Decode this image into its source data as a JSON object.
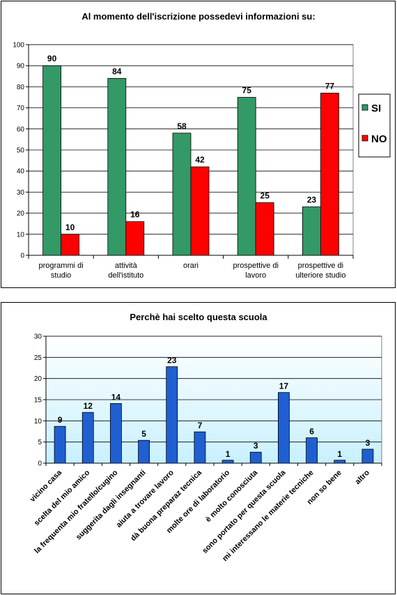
{
  "colors": {
    "si": "#339966",
    "no": "#ff0000",
    "bar2": "#1f5fd1",
    "plot1_bg": "#ffffff",
    "plot2_top": "#ffffff",
    "plot2_bottom": "#c8f0ff"
  },
  "chart_data": [
    {
      "type": "bar",
      "title": "Al momento dell'iscrizione possedevi  informazioni su:",
      "categories": [
        [
          "programmi di",
          "studio"
        ],
        [
          "attività",
          "dell'istituto"
        ],
        [
          "orari"
        ],
        [
          "prospettive di",
          "lavoro"
        ],
        [
          "prospettive  di",
          "ulteriore studio"
        ]
      ],
      "series": [
        {
          "name": "SI",
          "values": [
            90,
            84,
            58,
            75,
            23
          ]
        },
        {
          "name": "NO",
          "values": [
            10,
            16,
            42,
            25,
            77
          ]
        }
      ],
      "ylim": [
        0,
        100
      ],
      "yticks": [
        0,
        10,
        20,
        30,
        40,
        50,
        60,
        70,
        80,
        90,
        100
      ],
      "grid": true,
      "legend": "right"
    },
    {
      "type": "bar",
      "title": "Perchè hai scelto questa scuola",
      "categories": [
        "vicino casa",
        "scelta del mio amico",
        "la frequenta mio fratello/cugino",
        "suggerita dagli insegnanti",
        "aiuta a trovare lavoro",
        "dà buona preparaz tecnica",
        "molte ore di laboratorio",
        "è molto conosciuta",
        "sono portato per questa scuola",
        "mi interessano le materie tecniche",
        "non so bene",
        "altro"
      ],
      "values": [
        8.7,
        12,
        14.1,
        5.4,
        22.8,
        7.4,
        0.7,
        2.6,
        16.7,
        6,
        0.7,
        3.3
      ],
      "data_labels": [
        "9",
        "12",
        "14",
        "5",
        "23",
        "7",
        "1",
        "3",
        "17",
        "6",
        "1",
        "3"
      ],
      "ylim": [
        0,
        30
      ],
      "yticks": [
        0,
        5,
        10,
        15,
        20,
        25,
        30
      ],
      "grid": true
    }
  ]
}
